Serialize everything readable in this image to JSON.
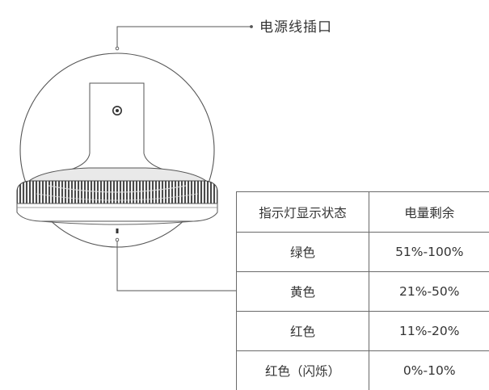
{
  "callout": {
    "label": "电源线插口"
  },
  "table": {
    "headers": [
      "指示灯显示状态",
      "电量剩余"
    ],
    "rows": [
      [
        "绿色",
        "51%-100%"
      ],
      [
        "黄色",
        "21%-50%"
      ],
      [
        "红色",
        "11%-20%"
      ],
      [
        "红色（闪烁）",
        "0%-10%"
      ]
    ]
  },
  "icons": [
    "power-cord-port-icon",
    "indicator-light-icon"
  ],
  "colors": {
    "line": "#555555",
    "fill_dark": "#3a3a3a",
    "background": "#ffffff"
  }
}
